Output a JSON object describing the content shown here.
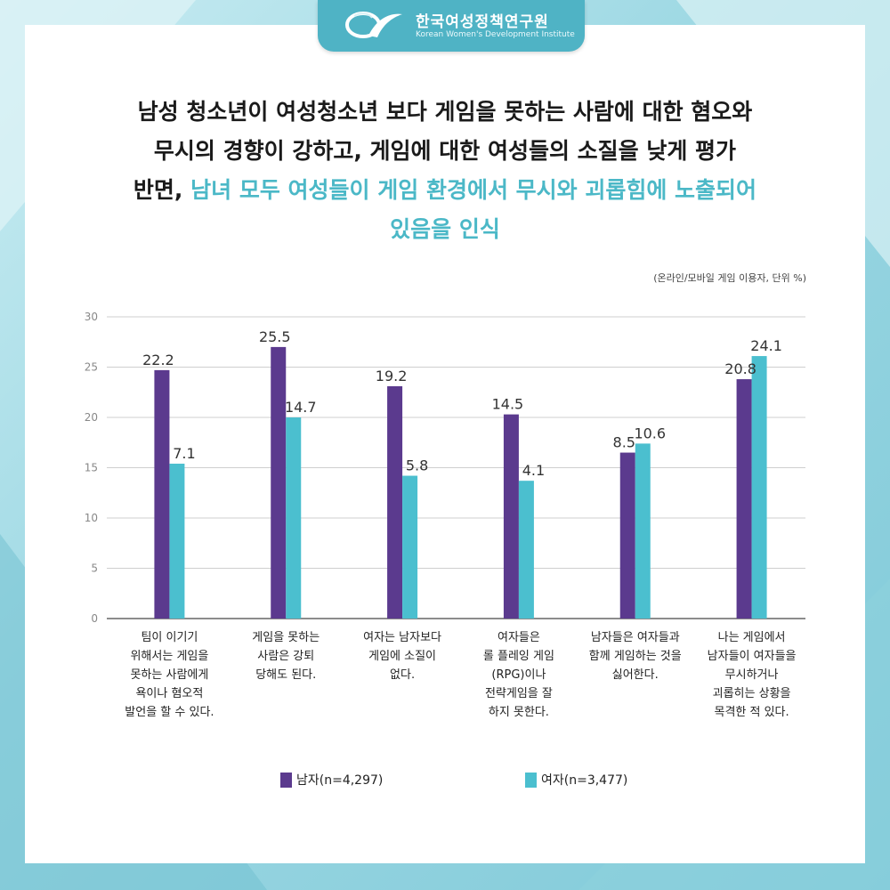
{
  "logo": {
    "name_kr": "한국여성정책연구원",
    "name_en": "Korean Women's Development Institute"
  },
  "headline": {
    "line1": "남성 청소년이 여성청소년 보다 게임을 못하는 사람에 대한 혐오와",
    "line2": "무시의 경향이 강하고, 게임에 대한 여성들의 소질을 낮게 평가",
    "line3_prefix": "반면, ",
    "line3_highlight": "남녀 모두 여성들이 게임 환경에서 무시와 괴롭힘에 노출되어",
    "line4_highlight": "있음을 인식"
  },
  "unit_note": "(온라인/모바일 게임 이용자, 단위 %)",
  "colors": {
    "male": "#5b3a8e",
    "female": "#4bbfcf",
    "accent": "#4bb8c7",
    "frame": "#4fb3c5"
  },
  "legend": {
    "male": "남자(n=4,297)",
    "female": "여자(n=3,477)"
  },
  "chart_data": {
    "type": "bar",
    "categories": [
      "팀이 이기기\n위해서는 게임을\n못하는 사람에게\n욕이나 혐오적\n발언을 할 수 있다.",
      "게임을 못하는\n사람은 강퇴\n당해도 된다.",
      "여자는 남자보다\n게임에 소질이\n없다.",
      "여자들은\n롤 플레잉 게임\n(RPG)이나\n전략게임을 잘\n하지 못한다.",
      "남자들은 여자들과\n함께 게임하는 것을\n싫어한다.",
      "나는 게임에서\n남자들이 여자들을\n무시하거나\n괴롭히는 상황을\n목격한 적 있다."
    ],
    "series": [
      {
        "name": "남자(n=4,297)",
        "values": [
          22.2,
          25.5,
          19.2,
          14.5,
          8.5,
          20.8
        ]
      },
      {
        "name": "여자(n=3,477)",
        "values": [
          7.1,
          14.7,
          5.8,
          4.1,
          10.6,
          24.1
        ]
      }
    ],
    "bar_heights_as_drawn": {
      "male": [
        24.7,
        27.0,
        23.1,
        20.3,
        16.5,
        23.8
      ],
      "female": [
        15.4,
        20.0,
        14.2,
        13.7,
        17.4,
        26.1
      ]
    },
    "y_ticks": [
      "0",
      "5",
      "10",
      "15",
      "20",
      "25",
      "30"
    ],
    "ylim": [
      0,
      30
    ],
    "grid": true,
    "legend_position": "bottom-center",
    "title": "",
    "xlabel": "",
    "ylabel": ""
  }
}
